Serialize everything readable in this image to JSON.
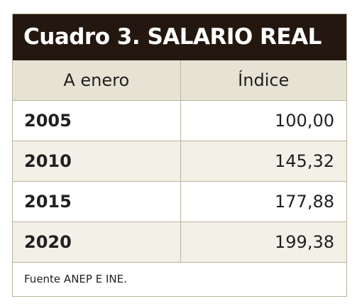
{
  "chart_data": {
    "type": "table",
    "title": "Cuadro 3. SALARIO REAL",
    "columns": [
      "A enero",
      "Índice"
    ],
    "rows": [
      {
        "year": "2005",
        "index": "100,00"
      },
      {
        "year": "2010",
        "index": "145,32"
      },
      {
        "year": "2015",
        "index": "177,88"
      },
      {
        "year": "2020",
        "index": "199,38"
      }
    ],
    "source": "Fuente ANEP E INE.",
    "colors": {
      "title_background": "#24170f",
      "title_text": "#ffffff",
      "header_background": "#e6e3d4",
      "alternate_row_background": "#f2f0e7",
      "border": "#b9b39b"
    }
  }
}
